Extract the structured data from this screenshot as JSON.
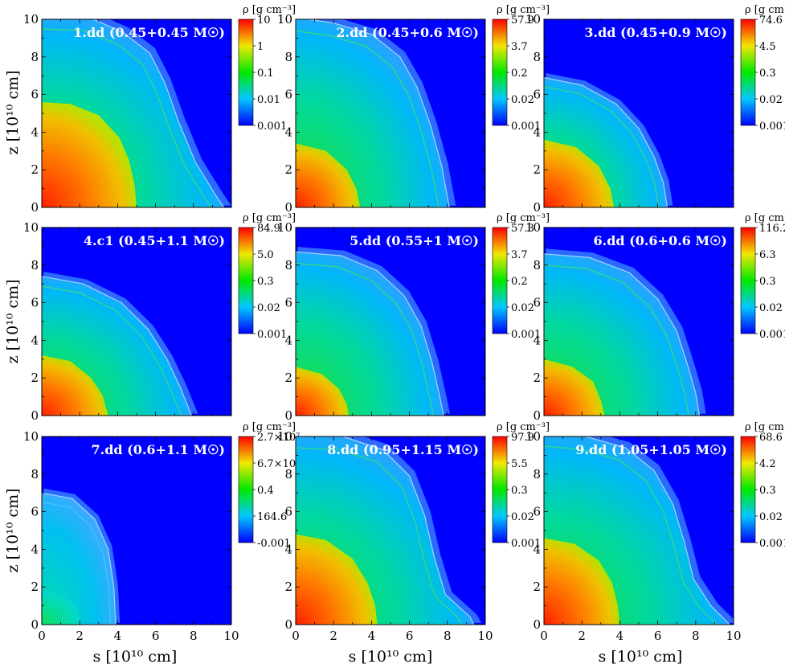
{
  "figure": {
    "xlabel": "s [10¹⁰ cm]",
    "ylabel": "z [10¹⁰ cm]",
    "colorbar_title": "ρ [g cm⁻³]",
    "background_color": "#0000ff",
    "colormap": [
      "#0000ff",
      "#00c8ff",
      "#00e800",
      "#f0e800",
      "#ff0000"
    ]
  },
  "chart_data": [
    {
      "type": "heatmap",
      "label": "1.dd (0.45+0.45 M☉)",
      "xlim": [
        0,
        10
      ],
      "ylim": [
        0,
        10
      ],
      "x_ticks": [
        "0",
        "2",
        "4",
        "6",
        "8",
        "10"
      ],
      "y_ticks": [
        "0",
        "2",
        "4",
        "6",
        "8",
        "10"
      ],
      "colorbar_ticks": [
        "10",
        "1",
        "0.1",
        "0.01",
        "0.001"
      ],
      "ejecta_outline": [
        [
          0,
          10.2
        ],
        [
          2.5,
          10.1
        ],
        [
          4.3,
          9.3
        ],
        [
          5.7,
          8.2
        ],
        [
          6.5,
          6.6
        ],
        [
          7.2,
          4.6
        ],
        [
          8.1,
          2.4
        ],
        [
          9.2,
          0.6
        ],
        [
          9.6,
          0
        ]
      ],
      "dense_core_outline": [
        [
          0,
          5.6
        ],
        [
          1.5,
          5.5
        ],
        [
          3,
          4.9
        ],
        [
          4.1,
          3.7
        ],
        [
          4.6,
          2.5
        ],
        [
          4.9,
          1.2
        ],
        [
          5,
          0
        ]
      ]
    },
    {
      "type": "heatmap",
      "label": "2.dd (0.45+0.6 M☉)",
      "xlim": [
        0,
        10
      ],
      "ylim": [
        0,
        10
      ],
      "x_ticks": [
        "0",
        "2",
        "4",
        "6",
        "8",
        "10"
      ],
      "y_ticks": [
        "0",
        "2",
        "4",
        "6",
        "8",
        "10"
      ],
      "colorbar_ticks": [
        "57.9",
        "3.7",
        "0.2",
        "0.02",
        "0.001"
      ],
      "ejecta_outline": [
        [
          0,
          10.1
        ],
        [
          2,
          9.8
        ],
        [
          4,
          9.2
        ],
        [
          5.5,
          8
        ],
        [
          6.4,
          6.4
        ],
        [
          7.1,
          4.4
        ],
        [
          7.7,
          2.2
        ],
        [
          8.1,
          0
        ]
      ],
      "dense_core_outline": [
        [
          0,
          3.4
        ],
        [
          1.6,
          3
        ],
        [
          2.7,
          2
        ],
        [
          3.2,
          1
        ],
        [
          3.4,
          0
        ]
      ]
    },
    {
      "type": "heatmap",
      "label": "3.dd (0.45+0.9 M☉)",
      "xlim": [
        0,
        10
      ],
      "ylim": [
        0,
        10
      ],
      "x_ticks": [
        "0",
        "2",
        "4",
        "6",
        "8",
        "10"
      ],
      "y_ticks": [
        "0",
        "2",
        "4",
        "6",
        "8",
        "10"
      ],
      "colorbar_ticks": [
        "74.6",
        "4.5",
        "0.3",
        "0.02",
        "0.001"
      ],
      "ejecta_outline": [
        [
          0,
          6.9
        ],
        [
          2,
          6.5
        ],
        [
          3.8,
          5.5
        ],
        [
          5,
          4.2
        ],
        [
          5.8,
          2.7
        ],
        [
          6.3,
          1.3
        ],
        [
          6.5,
          0
        ]
      ],
      "dense_core_outline": [
        [
          0,
          3.6
        ],
        [
          1.7,
          3.2
        ],
        [
          2.9,
          2.2
        ],
        [
          3.5,
          1
        ],
        [
          3.7,
          0
        ]
      ]
    },
    {
      "type": "heatmap",
      "label": "4.c1 (0.45+1.1 M☉)",
      "xlim": [
        0,
        10
      ],
      "ylim": [
        0,
        10
      ],
      "x_ticks": [
        "0",
        "2",
        "4",
        "6",
        "8",
        "10"
      ],
      "y_ticks": [
        "0",
        "2",
        "4",
        "6",
        "8",
        "10"
      ],
      "colorbar_ticks": [
        "84.9",
        "5.0",
        "0.3",
        "0.02",
        "0.001"
      ],
      "ejecta_outline": [
        [
          0,
          7.4
        ],
        [
          2.2,
          7
        ],
        [
          4.2,
          6
        ],
        [
          5.6,
          4.6
        ],
        [
          6.6,
          3
        ],
        [
          7.3,
          1.5
        ],
        [
          7.9,
          0
        ]
      ],
      "dense_core_outline": [
        [
          0,
          3.2
        ],
        [
          1.5,
          2.9
        ],
        [
          2.6,
          2
        ],
        [
          3.2,
          1.1
        ],
        [
          3.5,
          0
        ]
      ]
    },
    {
      "type": "heatmap",
      "label": "5.dd (0.55+1 M☉)",
      "xlim": [
        0,
        10
      ],
      "ylim": [
        0,
        10
      ],
      "x_ticks": [
        "0",
        "2",
        "4",
        "6",
        "8",
        "10"
      ],
      "y_ticks": [
        "0",
        "2",
        "4",
        "6",
        "8",
        "10"
      ],
      "colorbar_ticks": [
        "57.3",
        "3.7",
        "0.2",
        "0.02",
        "0.001"
      ],
      "ejecta_outline": [
        [
          0,
          8.7
        ],
        [
          2.4,
          8.5
        ],
        [
          4.3,
          7.7
        ],
        [
          5.7,
          6.4
        ],
        [
          6.6,
          4.8
        ],
        [
          7.2,
          2.8
        ],
        [
          7.6,
          1
        ],
        [
          7.8,
          0
        ]
      ],
      "dense_core_outline": [
        [
          0,
          2.6
        ],
        [
          1.4,
          2.2
        ],
        [
          2.3,
          1.4
        ],
        [
          2.7,
          0.6
        ],
        [
          2.8,
          0
        ]
      ]
    },
    {
      "type": "heatmap",
      "label": "6.dd (0.6+0.6 M☉)",
      "xlim": [
        0,
        10
      ],
      "ylim": [
        0,
        10
      ],
      "x_ticks": [
        "0",
        "2",
        "4",
        "6",
        "8",
        "10"
      ],
      "y_ticks": [
        "0",
        "2",
        "4",
        "6",
        "8",
        "10"
      ],
      "colorbar_ticks": [
        "116.2",
        "6.3",
        "0.3",
        "0.02",
        "0.001"
      ],
      "ejecta_outline": [
        [
          0,
          8.6
        ],
        [
          2.4,
          8.4
        ],
        [
          4.5,
          7.6
        ],
        [
          6,
          6.2
        ],
        [
          7,
          4.5
        ],
        [
          7.6,
          2.6
        ],
        [
          8,
          1.2
        ],
        [
          8.2,
          0
        ]
      ],
      "dense_core_outline": [
        [
          0,
          3
        ],
        [
          1.5,
          2.6
        ],
        [
          2.6,
          1.8
        ],
        [
          3,
          0.8
        ],
        [
          3.2,
          0
        ]
      ]
    },
    {
      "type": "heatmap",
      "label": "7.dd (0.6+1.1 M☉)",
      "xlim": [
        0,
        10
      ],
      "ylim": [
        0,
        10
      ],
      "x_ticks": [
        "0",
        "2",
        "4",
        "6",
        "8",
        "10"
      ],
      "y_ticks": [
        "0",
        "2",
        "4",
        "6",
        "8",
        "10"
      ],
      "colorbar_ticks": [
        "2.7×10⁷",
        "6.7×10⁴",
        "0.4",
        "164.6",
        "-0.001"
      ],
      "ejecta_outline": [
        [
          0,
          7
        ],
        [
          1.6,
          6.7
        ],
        [
          2.8,
          5.6
        ],
        [
          3.5,
          4
        ],
        [
          3.8,
          2
        ],
        [
          3.9,
          0
        ]
      ],
      "dense_core_outline": [
        [
          0,
          1.8
        ],
        [
          1,
          1.6
        ],
        [
          1.8,
          1
        ],
        [
          2.1,
          0
        ]
      ]
    },
    {
      "type": "heatmap",
      "label": "8.dd (0.95+1.15 M☉)",
      "xlim": [
        0,
        10
      ],
      "ylim": [
        0,
        10
      ],
      "x_ticks": [
        "0",
        "2",
        "4",
        "6",
        "8",
        "10"
      ],
      "y_ticks": [
        "0",
        "2",
        "4",
        "6",
        "8",
        "10"
      ],
      "colorbar_ticks": [
        "97.9",
        "5.5",
        "0.3",
        "0.02",
        "0.001"
      ],
      "ejecta_outline": [
        [
          0,
          10.1
        ],
        [
          2.5,
          10
        ],
        [
          4.6,
          9.3
        ],
        [
          6,
          7.9
        ],
        [
          6.8,
          5.8
        ],
        [
          7.3,
          3.6
        ],
        [
          7.9,
          1.6
        ],
        [
          9.2,
          0.4
        ],
        [
          9.4,
          0
        ]
      ],
      "dense_core_outline": [
        [
          0,
          4.8
        ],
        [
          1.6,
          4.5
        ],
        [
          3,
          3.5
        ],
        [
          3.8,
          2.2
        ],
        [
          4.2,
          1
        ],
        [
          4.3,
          0
        ]
      ]
    },
    {
      "type": "heatmap",
      "label": "9.dd (1.05+1.05 M☉)",
      "xlim": [
        0,
        10
      ],
      "ylim": [
        0,
        10
      ],
      "x_ticks": [
        "0",
        "2",
        "4",
        "6",
        "8",
        "10"
      ],
      "y_ticks": [
        "0",
        "2",
        "4",
        "6",
        "8",
        "10"
      ],
      "colorbar_ticks": [
        "68.6",
        "4.2",
        "0.3",
        "0.02",
        "0.001"
      ],
      "ejecta_outline": [
        [
          0,
          10.2
        ],
        [
          2.2,
          10
        ],
        [
          4.3,
          9.4
        ],
        [
          5.8,
          8.2
        ],
        [
          6.8,
          6.4
        ],
        [
          7.4,
          4.4
        ],
        [
          7.9,
          2.4
        ],
        [
          8.8,
          1
        ],
        [
          9.8,
          0
        ]
      ],
      "dense_core_outline": [
        [
          0,
          4.6
        ],
        [
          1.6,
          4.3
        ],
        [
          2.9,
          3.4
        ],
        [
          3.6,
          2.2
        ],
        [
          3.9,
          1
        ],
        [
          4,
          0
        ]
      ]
    }
  ]
}
